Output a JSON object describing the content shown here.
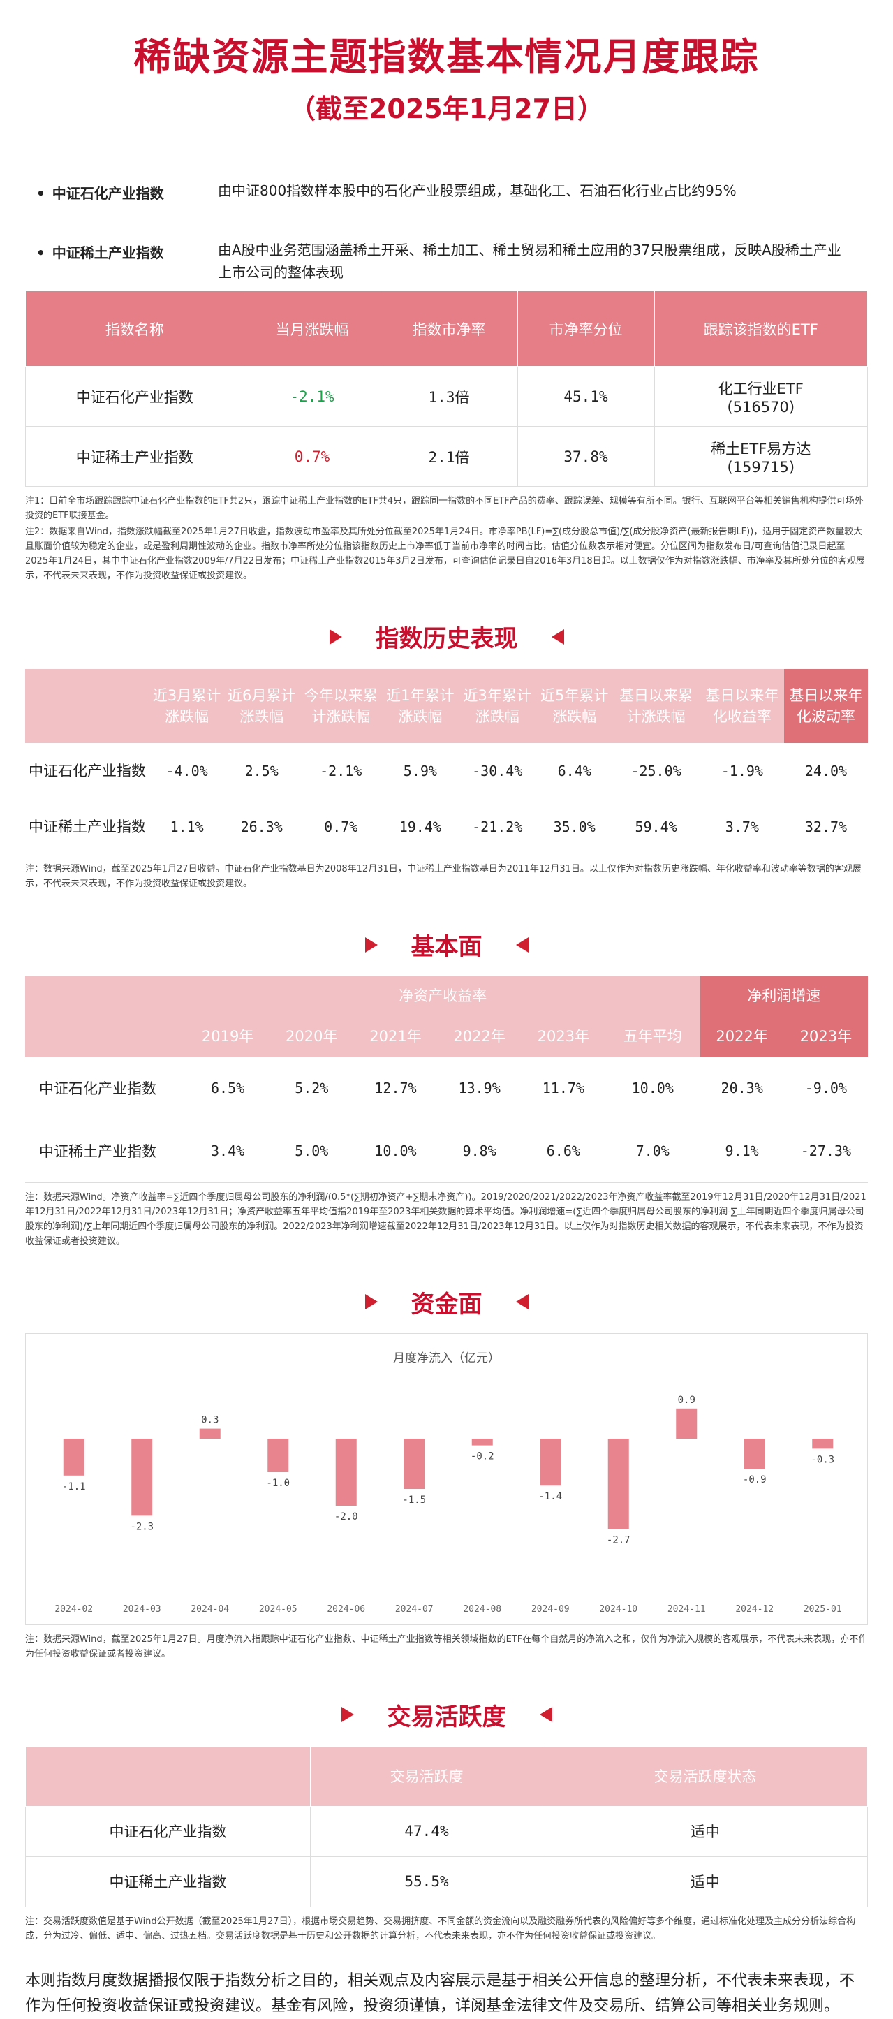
{
  "title": "稀缺资源主题指数基本情况月度跟踪",
  "subtitle": "（截至2025年1月27日）",
  "intro": [
    {
      "name": "中证石化产业指数",
      "desc": "由中证800指数样本股中的石化产业股票组成，基础化工、石油石化行业占比约95%"
    },
    {
      "name": "中证稀土产业指数",
      "desc": "由A股中业务范围涵盖稀土开采、稀土加工、稀土贸易和稀土应用的37只股票组成，反映A股稀土产业上市公司的整体表现"
    }
  ],
  "etf_table": {
    "headers": [
      "指数名称",
      "当月涨跌幅",
      "指数市净率",
      "市净率分位",
      "跟踪该指数的ETF"
    ],
    "rows": [
      {
        "name": "中证石化产业指数",
        "change": "-2.1%",
        "pb": "1.3倍",
        "pb_pct": "45.1%",
        "etf": "化工行业ETF",
        "etf_code": "(516570)",
        "change_color": "#1aa34a"
      },
      {
        "name": "中证稀土产业指数",
        "change": "0.7%",
        "pb": "2.1倍",
        "pb_pct": "37.8%",
        "etf": "稀土ETF易方达",
        "etf_code": "(159715)",
        "change_color": "#d02030"
      }
    ]
  },
  "note1": "注1：目前全市场跟踪跟踪中证石化产业指数的ETF共2只，跟踪中证稀土产业指数的ETF共4只，跟踪同一指数的不同ETF产品的费率、跟踪误差、规模等有所不同。银行、互联网平台等相关销售机构提供可场外投资的ETF联接基金。",
  "note2": "注2：数据来自Wind，指数涨跌幅截至2025年1月27日收盘，指数波动市盈率及其所处分位截至2025年1月24日。市净率PB(LF)=∑(成分股总市值)/∑(成分股净资产(最新报告期LF))，适用于固定资产数量较大且账面价值较为稳定的企业，或是盈利周期性波动的企业。指数市净率所处分位指该指数历史上市净率低于当前市净率的时间占比，估值分位数表示相对便宜。分位区间为指数发布日/可查询估值记录日起至2025年1月24日，其中中证石化产业指数2009年/7月22日发布；中证稀土产业指数2015年3月2日发布，可查询估值记录日自2016年3月18日起。以上数据仅作为对指数涨跌幅、市净率及其所处分位的客观展示，不代表未来表现，不作为投资收益保证或投资建议。",
  "sections": {
    "history": "指数历史表现",
    "fundamentals": "基本面",
    "capital": "资金面",
    "activity": "交易活跃度"
  },
  "history_table": {
    "headers": [
      "近3月累计涨跌幅",
      "近6月累计涨跌幅",
      "今年以来累计涨跌幅",
      "近1年累计涨跌幅",
      "近3年累计涨跌幅",
      "近5年累计涨跌幅",
      "基日以来累计涨跌幅",
      "基日以来年化收益率",
      "基日以来年化波动率"
    ],
    "rows": [
      {
        "name": "中证石化产业指数",
        "values": [
          "-4.0%",
          "2.5%",
          "-2.1%",
          "5.9%",
          "-30.4%",
          "6.4%",
          "-25.0%",
          "-1.9%",
          "24.0%"
        ]
      },
      {
        "name": "中证稀土产业指数",
        "values": [
          "1.1%",
          "26.3%",
          "0.7%",
          "19.4%",
          "-21.2%",
          "35.0%",
          "59.4%",
          "3.7%",
          "32.7%"
        ]
      }
    ]
  },
  "note3": "注：数据来源Wind，截至2025年1月27日收益。中证石化产业指数基日为2008年12月31日，中证稀土产业指数基日为2011年12月31日。以上仅作为对指数历史涨跌幅、年化收益率和波动率等数据的客观展示，不代表未来表现，不作为投资收益保证或投资建议。",
  "fund_table": {
    "group1": "净资产收益率",
    "group2": "净利润增速",
    "sub_headers": [
      "2019年",
      "2020年",
      "2021年",
      "2022年",
      "2023年",
      "五年平均",
      "2022年",
      "2023年"
    ],
    "rows": [
      {
        "name": "中证石化产业指数",
        "values": [
          "6.5%",
          "5.2%",
          "12.7%",
          "13.9%",
          "11.7%",
          "10.0%",
          "20.3%",
          "-9.0%"
        ]
      },
      {
        "name": "中证稀土产业指数",
        "values": [
          "3.4%",
          "5.0%",
          "10.0%",
          "9.8%",
          "6.6%",
          "7.0%",
          "9.1%",
          "-27.3%"
        ]
      }
    ]
  },
  "note4": "注：数据来源Wind。净资产收益率=∑近四个季度归属母公司股东的净利润/(0.5*(∑期初净资产+∑期末净资产))。2019/2020/2021/2022/2023年净资产收益率截至2019年12月31日/2020年12月31日/2021年12月31日/2022年12月31日/2023年12月31日；净资产收益率五年平均值指2019年至2023年相关数据的算术平均值。净利润增速=(∑近四个季度归属母公司股东的净利润-∑上年同期近四个季度归属母公司股东的净利润)/∑上年同期近四个季度归属母公司股东的净利润。2022/2023年净利润增速截至2022年12月31日/2023年12月31日。以上仅作为对指数历史相关数据的客观展示，不代表未来表现，不作为投资收益保证或者投资建议。",
  "chart_data": {
    "type": "bar",
    "title": "月度净流入（亿元）",
    "categories": [
      "2024-02",
      "2024-03",
      "2024-04",
      "2024-05",
      "2024-06",
      "2024-07",
      "2024-08",
      "2024-09",
      "2024-10",
      "2024-11",
      "2024-12",
      "2025-01"
    ],
    "values": [
      -1.1,
      -2.3,
      0.3,
      -1.0,
      -2.0,
      -1.5,
      -0.2,
      -1.4,
      -2.7,
      0.9,
      -0.9,
      -0.3
    ],
    "bar_color": "#e8848e"
  },
  "note5": "注：数据来源Wind，截至2025年1月27日。月度净流入指跟踪中证石化产业指数、中证稀土产业指数等相关领域指数的ETF在每个自然月的净流入之和，仅作为净流入规模的客观展示，不代表未来表现，亦不作为任何投资收益保证或者投资建议。",
  "activity_table": {
    "headers": [
      "",
      "交易活跃度",
      "交易活跃度状态"
    ],
    "rows": [
      {
        "name": "中证石化产业指数",
        "value": "47.4%",
        "status": "适中"
      },
      {
        "name": "中证稀土产业指数",
        "value": "55.5%",
        "status": "适中"
      }
    ]
  },
  "note6": "注：交易活跃度数值是基于Wind公开数据（截至2025年1月27日），根据市场交易趋势、交易拥挤度、不同金额的资金流向以及融资融券所代表的风险偏好等多个维度，通过标准化处理及主成分分析法综合构成，分为过冷、偏低、适中、偏高、过热五档。交易活跃度数据是基于历史和公开数据的计算分析，不代表未来表现，亦不作为任何投资收益保证或投资建议。",
  "disclaimer": "本则指数月度数据播报仅限于指数分析之目的，相关观点及内容展示是基于相关公开信息的整理分析，不代表未来表现，不作为任何投资收益保证或投资建议。基金有风险，投资须谨慎，详阅基金法律文件及交易所、结算公司等相关业务规则。"
}
